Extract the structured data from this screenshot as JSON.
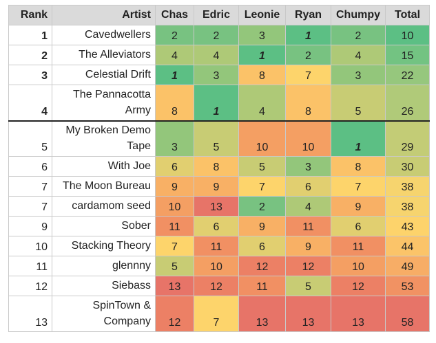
{
  "headers": [
    "Rank",
    "Artist",
    "Chas",
    "Edric",
    "Leonie",
    "Ryan",
    "Chumpy",
    "Total"
  ],
  "rows": [
    {
      "rank": "1",
      "artist": "Cavedwellers",
      "scores": [
        "2",
        "2",
        "3",
        "1",
        "2"
      ],
      "total": "10",
      "bold": true
    },
    {
      "rank": "2",
      "artist": "The Alleviators",
      "scores": [
        "4",
        "4",
        "1",
        "2",
        "4"
      ],
      "total": "15",
      "bold": true
    },
    {
      "rank": "3",
      "artist": "Celestial Drift",
      "scores": [
        "1",
        "3",
        "8",
        "7",
        "3"
      ],
      "total": "22",
      "bold": true
    },
    {
      "rank": "4",
      "artist": "The Pannacotta Army",
      "scores": [
        "8",
        "1",
        "4",
        "8",
        "5"
      ],
      "total": "26",
      "bold": true
    },
    {
      "rank": "5",
      "artist": "My Broken Demo Tape",
      "scores": [
        "3",
        "5",
        "10",
        "10",
        "1"
      ],
      "total": "29",
      "bold": false
    },
    {
      "rank": "6",
      "artist": "With Joe",
      "scores": [
        "6",
        "8",
        "5",
        "3",
        "8"
      ],
      "total": "30",
      "bold": false
    },
    {
      "rank": "7",
      "artist": "The Moon Bureau",
      "scores": [
        "9",
        "9",
        "7",
        "6",
        "7"
      ],
      "total": "38",
      "bold": false
    },
    {
      "rank": "7",
      "artist": "cardamom seed",
      "scores": [
        "10",
        "13",
        "2",
        "4",
        "9"
      ],
      "total": "38",
      "bold": false
    },
    {
      "rank": "9",
      "artist": "Sober",
      "scores": [
        "11",
        "6",
        "9",
        "11",
        "6"
      ],
      "total": "43",
      "bold": false
    },
    {
      "rank": "10",
      "artist": "Stacking Theory",
      "scores": [
        "7",
        "11",
        "6",
        "9",
        "11"
      ],
      "total": "44",
      "bold": false
    },
    {
      "rank": "11",
      "artist": "glennny",
      "scores": [
        "5",
        "10",
        "12",
        "12",
        "10"
      ],
      "total": "49",
      "bold": false
    },
    {
      "rank": "12",
      "artist": "Siebass",
      "scores": [
        "13",
        "12",
        "11",
        "5",
        "12"
      ],
      "total": "53",
      "bold": false
    },
    {
      "rank": "13",
      "artist": "SpinTown & Company",
      "scores": [
        "12",
        "7",
        "13",
        "13",
        "13"
      ],
      "total": "58",
      "bold": false
    }
  ],
  "colors": {
    "header_bg": "#dadada",
    "score_scale": {
      "1": "#5cbf84",
      "2": "#78c281",
      "3": "#93c67b",
      "4": "#aec977",
      "5": "#c8cc74",
      "6": "#e1cf70",
      "7": "#fdd46b",
      "8": "#fbc268",
      "9": "#f8b065",
      "10": "#f49f63",
      "11": "#f19063",
      "12": "#ec8065",
      "13": "#e77468"
    },
    "total_scale": {
      "10": "#5cbf84",
      "15": "#73c382",
      "22": "#96c77d",
      "26": "#b0ca79",
      "29": "#c3cc76",
      "30": "#c8cc74",
      "38": "#f6d46e",
      "43": "#fdd36b",
      "44": "#fbc469",
      "49": "#f7ad66",
      "53": "#f19263",
      "58": "#e77468"
    }
  }
}
